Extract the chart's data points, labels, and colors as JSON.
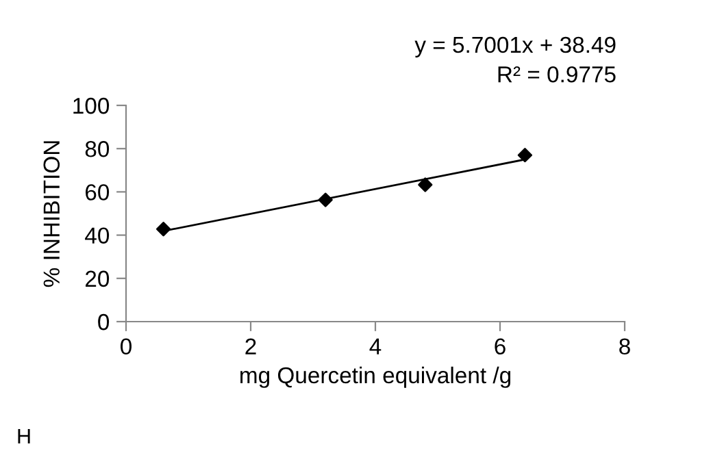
{
  "chart_data": {
    "type": "scatter",
    "xlabel": "mg Quercetin equivalent /g",
    "ylabel": "% INHIBITION",
    "xlim": [
      0,
      8
    ],
    "xticks": [
      0,
      2,
      4,
      6,
      8
    ],
    "ylim": [
      0,
      100
    ],
    "yticks": [
      0,
      20,
      40,
      60,
      80,
      100
    ],
    "grid": false,
    "legend": false,
    "series": [
      {
        "color": "#000000",
        "marker": "diamond",
        "x": [
          0.6,
          3.2,
          4.8,
          6.4
        ],
        "values": [
          42.8,
          56.3,
          63.3,
          77
        ]
      },
      {
        "type": "line",
        "color": "#000000",
        "x": [
          0.6,
          6.4
        ],
        "values": [
          41.9,
          75.0
        ],
        "line_style": "solid"
      }
    ],
    "annotations": [
      "y = 5.7001x + 38.49\nR² = 0.9775",
      "H"
    ]
  }
}
